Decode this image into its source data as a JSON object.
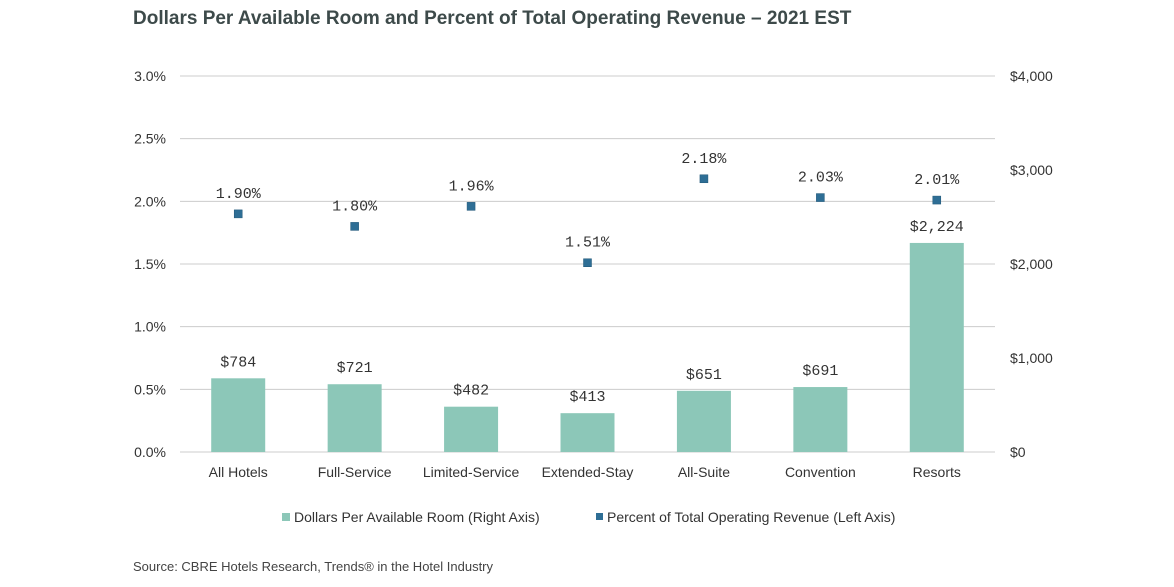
{
  "title": "Dollars Per Available Room and Percent of Total Operating Revenue – 2021 EST",
  "source": "Source: CBRE Hotels Research, Trends® in the Hotel Industry",
  "colors": {
    "bar": "#8cc7b8",
    "marker": "#2e6e95",
    "grid": "#cccccc",
    "text": "#333333"
  },
  "chart_data": {
    "type": "bar",
    "title": "Dollars Per Available Room and Percent of Total Operating Revenue – 2021 EST",
    "categories": [
      "All Hotels",
      "Full-Service",
      "Limited-Service",
      "Extended-Stay",
      "All-Suite",
      "Convention",
      "Resorts"
    ],
    "series": [
      {
        "name": "Dollars Per Available Room (Right Axis)",
        "type": "bar",
        "axis": "right",
        "values": [
          784,
          721,
          482,
          413,
          651,
          691,
          2224
        ],
        "labels": [
          "$784",
          "$721",
          "$482",
          "$413",
          "$651",
          "$691",
          "$2,224"
        ]
      },
      {
        "name": "Percent of Total Operating Revenue (Left Axis)",
        "type": "scatter",
        "axis": "left",
        "values": [
          1.9,
          1.8,
          1.96,
          1.51,
          2.18,
          2.03,
          2.01
        ],
        "labels": [
          "1.90%",
          "1.80%",
          "1.96%",
          "1.51%",
          "2.18%",
          "2.03%",
          "2.01%"
        ]
      }
    ],
    "left_axis": {
      "ylim": [
        0,
        3.0
      ],
      "ticks": [
        "0.0%",
        "0.5%",
        "1.0%",
        "1.5%",
        "2.0%",
        "2.5%",
        "3.0%"
      ],
      "tick_values": [
        0,
        0.5,
        1.0,
        1.5,
        2.0,
        2.5,
        3.0
      ]
    },
    "right_axis": {
      "ylim": [
        0,
        4000
      ],
      "ticks": [
        "$0",
        "$1,000",
        "$2,000",
        "$3,000",
        "$4,000"
      ],
      "tick_values": [
        0,
        1000,
        2000,
        3000,
        4000
      ]
    },
    "grid": true,
    "legend": "bottom"
  }
}
